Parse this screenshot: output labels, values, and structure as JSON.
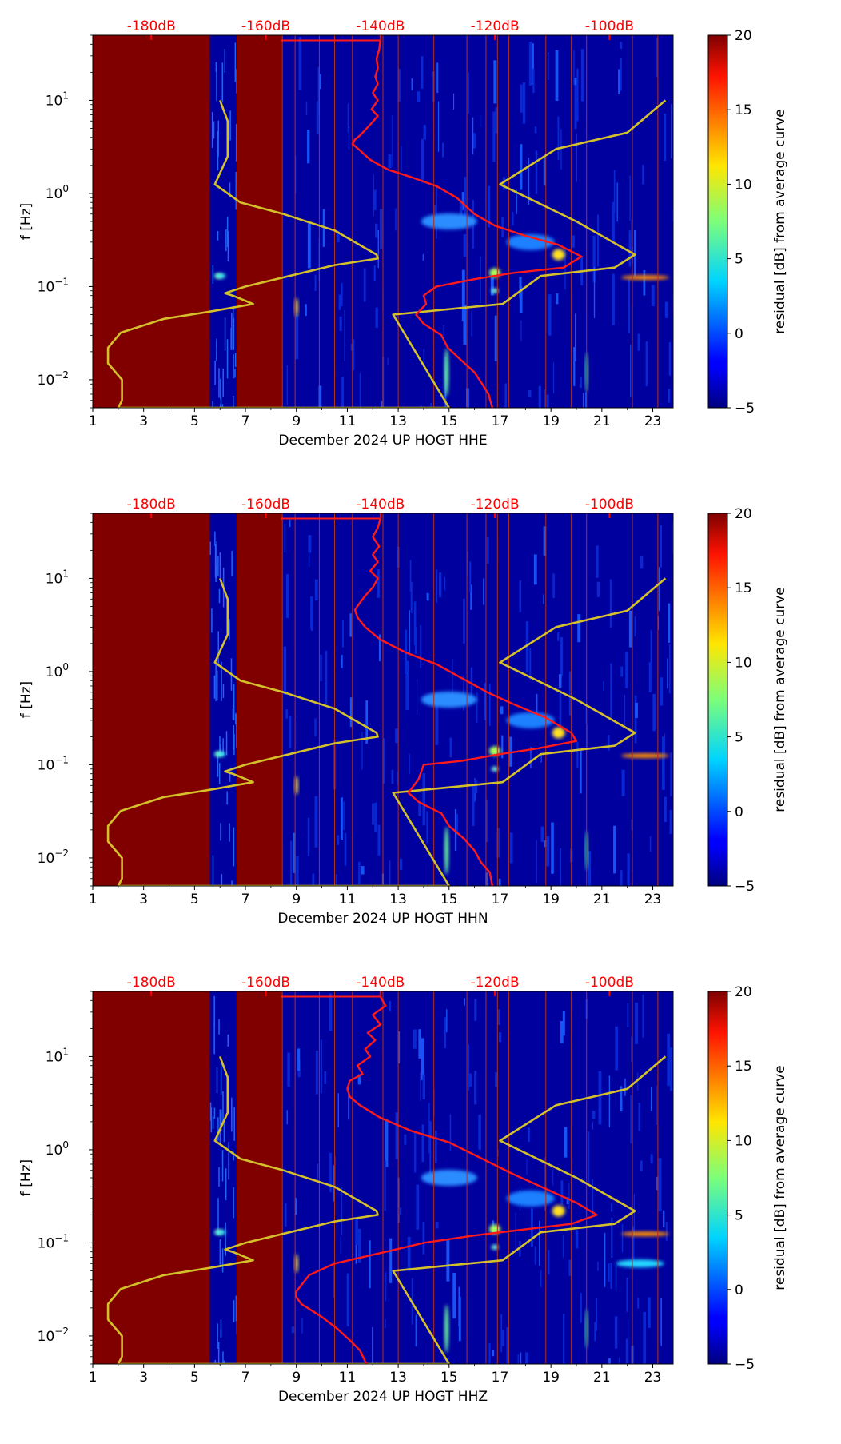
{
  "chart_data": [
    {
      "type": "heatmap",
      "channel": "HHE",
      "xlabel": "December 2024 UP HOGT  HHE",
      "ylabel": "f [Hz]",
      "xlim": [
        1,
        23.8
      ],
      "ylim": [
        0.005,
        50
      ],
      "x_ticks": [
        "1",
        "3",
        "5",
        "7",
        "9",
        "11",
        "13",
        "15",
        "17",
        "19",
        "21",
        "23"
      ],
      "y_ticks": [
        {
          "base": "10",
          "exp": "−2",
          "value": 0.01
        },
        {
          "base": "10",
          "exp": "−1",
          "value": 0.1
        },
        {
          "base": "10",
          "exp": "0",
          "value": 1
        },
        {
          "base": "10",
          "exp": "1",
          "value": 10
        }
      ],
      "top_axis_ticks": [
        "-180dB",
        "-160dB",
        "-140dB",
        "-120dB",
        "-100dB"
      ],
      "colorbar": {
        "label": "residual [dB] from average curve",
        "ticks": [
          "20",
          "15",
          "10",
          "5",
          "0",
          "−5"
        ],
        "range": [
          -5,
          20
        ]
      },
      "gaps": [
        [
          1,
          5.6
        ],
        [
          6.65,
          8.45
        ]
      ],
      "red_curve": [
        [
          12.3,
          44
        ],
        [
          12.25,
          35
        ],
        [
          12.15,
          28
        ],
        [
          12.2,
          22
        ],
        [
          12.1,
          18
        ],
        [
          12.2,
          15
        ],
        [
          12.0,
          12
        ],
        [
          12.2,
          10
        ],
        [
          11.95,
          8
        ],
        [
          12.2,
          6.8
        ],
        [
          11.9,
          5.5
        ],
        [
          11.7,
          4.8
        ],
        [
          11.5,
          4.2
        ],
        [
          11.3,
          3.8
        ],
        [
          11.2,
          3.4
        ],
        [
          11.5,
          2.9
        ],
        [
          11.9,
          2.3
        ],
        [
          12.6,
          1.8
        ],
        [
          13.5,
          1.5
        ],
        [
          14.5,
          1.2
        ],
        [
          15.3,
          0.9
        ],
        [
          16.0,
          0.6
        ],
        [
          16.8,
          0.45
        ],
        [
          18.0,
          0.35
        ],
        [
          19.3,
          0.28
        ],
        [
          20.2,
          0.21
        ],
        [
          19.5,
          0.16
        ],
        [
          17.5,
          0.14
        ],
        [
          16.0,
          0.12
        ],
        [
          14.5,
          0.1
        ],
        [
          14.0,
          0.08
        ],
        [
          14.1,
          0.065
        ],
        [
          13.7,
          0.05
        ],
        [
          14.0,
          0.04
        ],
        [
          14.7,
          0.03
        ],
        [
          14.95,
          0.022
        ],
        [
          15.5,
          0.016
        ],
        [
          16.0,
          0.012
        ],
        [
          16.3,
          0.009
        ],
        [
          16.55,
          0.007
        ],
        [
          16.7,
          0.005
        ]
      ],
      "yellow_curve": [
        [
          6.0,
          10
        ],
        [
          6.3,
          6
        ],
        [
          6.3,
          2.5
        ],
        [
          5.8,
          1.25
        ],
        [
          6.8,
          0.8
        ],
        [
          8.5,
          0.6
        ],
        [
          10.5,
          0.4
        ],
        [
          12.15,
          0.22
        ],
        [
          12.2,
          0.2
        ],
        [
          10.5,
          0.17
        ],
        [
          7.0,
          0.1
        ],
        [
          6.2,
          0.085
        ],
        [
          6.5,
          0.08
        ],
        [
          7.3,
          0.065
        ],
        [
          5.8,
          0.055
        ],
        [
          3.8,
          0.045
        ],
        [
          2.1,
          0.032
        ],
        [
          1.6,
          0.022
        ],
        [
          1.6,
          0.015
        ],
        [
          2.15,
          0.01
        ],
        [
          2.15,
          0.006
        ],
        [
          2.0,
          0.005
        ],
        [
          15.0,
          0.005
        ],
        [
          12.8,
          0.05
        ],
        [
          17.1,
          0.065
        ],
        [
          18.6,
          0.13
        ],
        [
          21.5,
          0.16
        ],
        [
          22.3,
          0.22
        ],
        [
          20.0,
          0.5
        ],
        [
          17.0,
          1.25
        ],
        [
          19.2,
          3.0
        ],
        [
          22.0,
          4.5
        ],
        [
          23.5,
          10
        ]
      ]
    },
    {
      "type": "heatmap",
      "channel": "HHN",
      "xlabel": "December 2024 UP HOGT  HHN",
      "ylabel": "f [Hz]",
      "xlim": [
        1,
        23.8
      ],
      "ylim": [
        0.005,
        50
      ],
      "x_ticks": [
        "1",
        "3",
        "5",
        "7",
        "9",
        "11",
        "13",
        "15",
        "17",
        "19",
        "21",
        "23"
      ],
      "y_ticks": [
        {
          "base": "10",
          "exp": "−2",
          "value": 0.01
        },
        {
          "base": "10",
          "exp": "−1",
          "value": 0.1
        },
        {
          "base": "10",
          "exp": "0",
          "value": 1
        },
        {
          "base": "10",
          "exp": "1",
          "value": 10
        }
      ],
      "top_axis_ticks": [
        "-180dB",
        "-160dB",
        "-140dB",
        "-120dB",
        "-100dB"
      ],
      "colorbar": {
        "label": "residual [dB] from average curve",
        "ticks": [
          "20",
          "15",
          "10",
          "5",
          "0",
          "−5"
        ],
        "range": [
          -5,
          20
        ]
      },
      "gaps": [
        [
          1,
          5.6
        ],
        [
          6.65,
          8.45
        ]
      ],
      "red_curve": [
        [
          12.3,
          44
        ],
        [
          12.2,
          35
        ],
        [
          12.0,
          28
        ],
        [
          12.25,
          22
        ],
        [
          12.0,
          18
        ],
        [
          12.2,
          15
        ],
        [
          11.9,
          12
        ],
        [
          12.2,
          10
        ],
        [
          12.0,
          8
        ],
        [
          11.7,
          6.5
        ],
        [
          11.5,
          5.5
        ],
        [
          11.3,
          4.6
        ],
        [
          11.4,
          3.8
        ],
        [
          11.7,
          3.0
        ],
        [
          12.3,
          2.2
        ],
        [
          13.3,
          1.6
        ],
        [
          14.5,
          1.2
        ],
        [
          15.5,
          0.85
        ],
        [
          16.5,
          0.6
        ],
        [
          17.5,
          0.45
        ],
        [
          18.8,
          0.32
        ],
        [
          19.8,
          0.22
        ],
        [
          20.0,
          0.18
        ],
        [
          18.5,
          0.15
        ],
        [
          17.0,
          0.13
        ],
        [
          15.5,
          0.11
        ],
        [
          14.0,
          0.1
        ],
        [
          13.8,
          0.07
        ],
        [
          13.4,
          0.05
        ],
        [
          13.8,
          0.04
        ],
        [
          14.7,
          0.03
        ],
        [
          15.0,
          0.022
        ],
        [
          15.6,
          0.016
        ],
        [
          16.0,
          0.012
        ],
        [
          16.25,
          0.009
        ],
        [
          16.6,
          0.007
        ],
        [
          16.7,
          0.005
        ]
      ],
      "yellow_curve": [
        [
          6.0,
          10
        ],
        [
          6.3,
          6
        ],
        [
          6.3,
          2.5
        ],
        [
          5.8,
          1.25
        ],
        [
          6.8,
          0.8
        ],
        [
          8.5,
          0.6
        ],
        [
          10.5,
          0.4
        ],
        [
          12.15,
          0.22
        ],
        [
          12.2,
          0.2
        ],
        [
          10.5,
          0.17
        ],
        [
          7.0,
          0.1
        ],
        [
          6.2,
          0.085
        ],
        [
          6.5,
          0.08
        ],
        [
          7.3,
          0.065
        ],
        [
          5.8,
          0.055
        ],
        [
          3.8,
          0.045
        ],
        [
          2.1,
          0.032
        ],
        [
          1.6,
          0.022
        ],
        [
          1.6,
          0.015
        ],
        [
          2.15,
          0.01
        ],
        [
          2.15,
          0.006
        ],
        [
          2.0,
          0.005
        ],
        [
          15.0,
          0.005
        ],
        [
          12.8,
          0.05
        ],
        [
          17.1,
          0.065
        ],
        [
          18.6,
          0.13
        ],
        [
          21.5,
          0.16
        ],
        [
          22.3,
          0.22
        ],
        [
          20.0,
          0.5
        ],
        [
          17.0,
          1.25
        ],
        [
          19.2,
          3.0
        ],
        [
          22.0,
          4.5
        ],
        [
          23.5,
          10
        ]
      ]
    },
    {
      "type": "heatmap",
      "channel": "HHZ",
      "xlabel": "December 2024 UP HOGT  HHZ",
      "ylabel": "f [Hz]",
      "xlim": [
        1,
        23.8
      ],
      "ylim": [
        0.005,
        50
      ],
      "x_ticks": [
        "1",
        "3",
        "5",
        "7",
        "9",
        "11",
        "13",
        "15",
        "17",
        "19",
        "21",
        "23"
      ],
      "y_ticks": [
        {
          "base": "10",
          "exp": "−2",
          "value": 0.01
        },
        {
          "base": "10",
          "exp": "−1",
          "value": 0.1
        },
        {
          "base": "10",
          "exp": "0",
          "value": 1
        },
        {
          "base": "10",
          "exp": "1",
          "value": 10
        }
      ],
      "top_axis_ticks": [
        "-180dB",
        "-160dB",
        "-140dB",
        "-120dB",
        "-100dB"
      ],
      "colorbar": {
        "label": "residual [dB] from average curve",
        "ticks": [
          "20",
          "15",
          "10",
          "5",
          "0",
          "−5"
        ],
        "range": [
          -5,
          20
        ]
      },
      "gaps": [
        [
          1,
          5.6
        ],
        [
          6.65,
          8.45
        ]
      ],
      "red_curve": [
        [
          12.3,
          44
        ],
        [
          12.5,
          35
        ],
        [
          12.0,
          28
        ],
        [
          12.3,
          22
        ],
        [
          11.8,
          18
        ],
        [
          12.1,
          15
        ],
        [
          11.7,
          12
        ],
        [
          11.9,
          10
        ],
        [
          11.4,
          8
        ],
        [
          11.6,
          6.5
        ],
        [
          11.1,
          5.5
        ],
        [
          11.0,
          4.5
        ],
        [
          11.1,
          3.7
        ],
        [
          11.5,
          3.0
        ],
        [
          12.3,
          2.2
        ],
        [
          13.5,
          1.6
        ],
        [
          15.0,
          1.2
        ],
        [
          16.3,
          0.8
        ],
        [
          17.5,
          0.55
        ],
        [
          18.8,
          0.38
        ],
        [
          20.0,
          0.27
        ],
        [
          20.8,
          0.2
        ],
        [
          19.8,
          0.16
        ],
        [
          18.0,
          0.14
        ],
        [
          16.0,
          0.12
        ],
        [
          14.0,
          0.1
        ],
        [
          12.5,
          0.08
        ],
        [
          10.5,
          0.06
        ],
        [
          9.5,
          0.045
        ],
        [
          9.0,
          0.03
        ],
        [
          9.0,
          0.026
        ],
        [
          9.2,
          0.022
        ],
        [
          10.0,
          0.016
        ],
        [
          10.6,
          0.012
        ],
        [
          11.1,
          0.009
        ],
        [
          11.5,
          0.007
        ],
        [
          11.75,
          0.005
        ]
      ],
      "yellow_curve": [
        [
          6.0,
          10
        ],
        [
          6.3,
          6
        ],
        [
          6.3,
          2.5
        ],
        [
          5.8,
          1.25
        ],
        [
          6.8,
          0.8
        ],
        [
          8.5,
          0.6
        ],
        [
          10.5,
          0.4
        ],
        [
          12.15,
          0.22
        ],
        [
          12.2,
          0.2
        ],
        [
          10.5,
          0.17
        ],
        [
          7.0,
          0.1
        ],
        [
          6.2,
          0.085
        ],
        [
          6.5,
          0.08
        ],
        [
          7.3,
          0.065
        ],
        [
          5.8,
          0.055
        ],
        [
          3.8,
          0.045
        ],
        [
          2.1,
          0.032
        ],
        [
          1.6,
          0.022
        ],
        [
          1.6,
          0.015
        ],
        [
          2.15,
          0.01
        ],
        [
          2.15,
          0.006
        ],
        [
          2.0,
          0.005
        ],
        [
          15.0,
          0.005
        ],
        [
          12.8,
          0.05
        ],
        [
          17.1,
          0.065
        ],
        [
          18.6,
          0.13
        ],
        [
          21.5,
          0.16
        ],
        [
          22.3,
          0.22
        ],
        [
          20.0,
          0.5
        ],
        [
          17.0,
          1.25
        ],
        [
          19.2,
          3.0
        ],
        [
          22.0,
          4.5
        ],
        [
          23.5,
          10
        ]
      ]
    }
  ],
  "colors": {
    "gap": "#800000",
    "background": "#00009f",
    "red_curve": "#ff1a1a",
    "yellow_curve": "#d4c02a",
    "top_axis": "#ff0000",
    "vertical_lines": "#b03020"
  }
}
